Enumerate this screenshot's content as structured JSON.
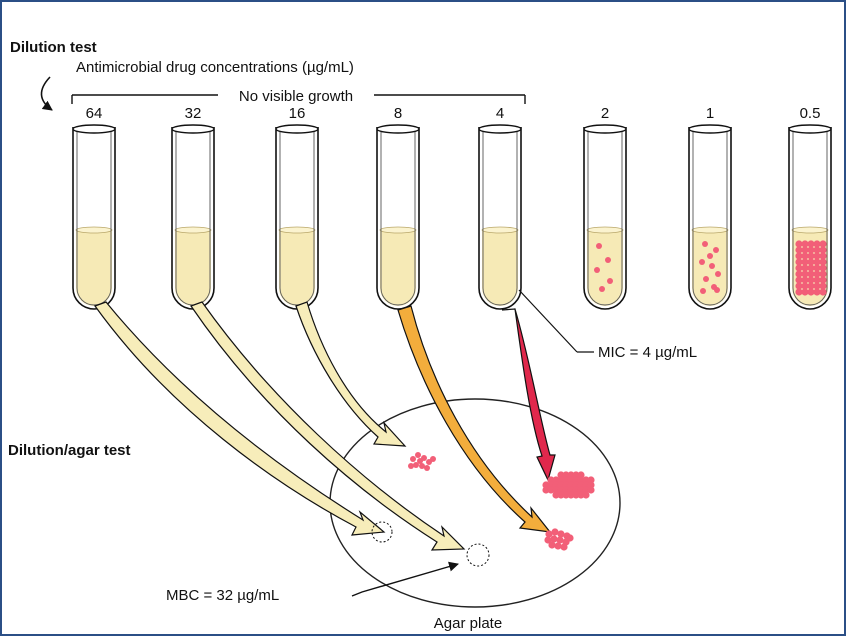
{
  "titles": {
    "dilution_test": "Dilution test",
    "dilution_agar_test": "Dilution/agar test"
  },
  "labels": {
    "concentrations_caption": "Antimicrobial drug concentrations (µg/mL)",
    "no_visible_growth": "No visible growth",
    "mic": "MIC = 4 µg/mL",
    "mbc": "MBC = 32 µg/mL",
    "agar_plate": "Agar plate"
  },
  "tubes": [
    {
      "concentration": "64",
      "growth": "none"
    },
    {
      "concentration": "32",
      "growth": "none"
    },
    {
      "concentration": "16",
      "growth": "none"
    },
    {
      "concentration": "8",
      "growth": "none"
    },
    {
      "concentration": "4",
      "growth": "none"
    },
    {
      "concentration": "2",
      "growth": "light"
    },
    {
      "concentration": "1",
      "growth": "moderate"
    },
    {
      "concentration": "0.5",
      "growth": "heavy"
    }
  ],
  "plate_spots": [
    {
      "from_tube": "64",
      "result": "no colonies"
    },
    {
      "from_tube": "32",
      "result": "no colonies"
    },
    {
      "from_tube": "16",
      "result": "few colonies"
    },
    {
      "from_tube": "8",
      "result": "colonies"
    },
    {
      "from_tube": "4",
      "result": "many colonies"
    }
  ],
  "colors": {
    "frame_border": "#2b4f86",
    "broth": "#f6eab6",
    "broth_edge": "#b9a76a",
    "colony": "#f25f78",
    "arrow_pale": "#f7edba",
    "arrow_orange": "#f3ad3c",
    "arrow_red": "#e0284c"
  }
}
